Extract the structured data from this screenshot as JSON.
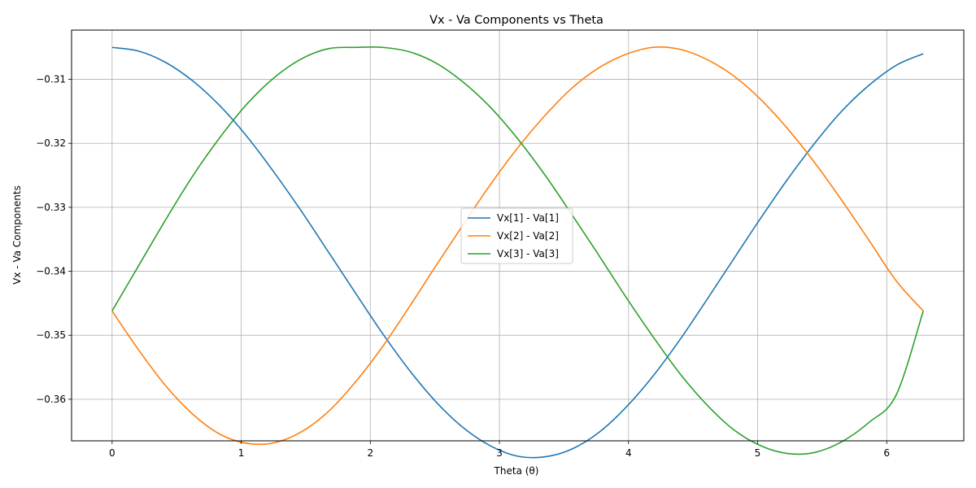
{
  "chart_data": {
    "type": "line",
    "title": "Vx - Va Components vs Theta",
    "xlabel": "Theta (θ)",
    "ylabel": "Vx - Va Components",
    "xlim": [
      -0.314,
      6.597
    ],
    "ylim": [
      -0.3665,
      -0.3023
    ],
    "xticks": [
      0,
      1,
      2,
      3,
      4,
      5,
      6
    ],
    "yticks": [
      -0.31,
      -0.32,
      -0.33,
      -0.34,
      -0.35,
      -0.36
    ],
    "xtick_labels": [
      "0",
      "1",
      "2",
      "3",
      "4",
      "5",
      "6"
    ],
    "ytick_labels": [
      "−0.31",
      "−0.32",
      "−0.33",
      "−0.34",
      "−0.35",
      "−0.36"
    ],
    "grid": true,
    "legend_position": "center",
    "x": [
      0.0,
      0.209,
      0.419,
      0.628,
      0.838,
      1.047,
      1.257,
      1.466,
      1.676,
      1.885,
      2.094,
      2.304,
      2.513,
      2.723,
      2.932,
      3.142,
      3.351,
      3.56,
      3.77,
      3.979,
      4.189,
      4.398,
      4.608,
      4.817,
      5.027,
      5.236,
      5.445,
      5.655,
      5.864,
      6.074,
      6.283
    ],
    "series": [
      {
        "name": "Vx[1] - Va[1]",
        "color": "#1f77b4",
        "values": [
          -0.305,
          -0.3056,
          -0.3074,
          -0.3103,
          -0.3142,
          -0.319,
          -0.3246,
          -0.3306,
          -0.337,
          -0.3434,
          -0.3497,
          -0.3555,
          -0.3605,
          -0.3645,
          -0.3673,
          -0.3689,
          -0.369,
          -0.3678,
          -0.3652,
          -0.3613,
          -0.3564,
          -0.3507,
          -0.3444,
          -0.338,
          -0.3316,
          -0.3255,
          -0.3199,
          -0.3149,
          -0.3109,
          -0.3078,
          -0.306
        ]
      },
      {
        "name": "Vx[2] - Va[2]",
        "color": "#ff7f0e",
        "values": [
          -0.3462,
          -0.3524,
          -0.358,
          -0.3624,
          -0.3655,
          -0.3669,
          -0.3668,
          -0.3651,
          -0.3619,
          -0.3573,
          -0.3518,
          -0.3455,
          -0.339,
          -0.3326,
          -0.3264,
          -0.3207,
          -0.3157,
          -0.3114,
          -0.3082,
          -0.3061,
          -0.305,
          -0.3053,
          -0.3069,
          -0.3095,
          -0.3132,
          -0.3178,
          -0.3231,
          -0.329,
          -0.3352,
          -0.3415,
          -0.3462
        ]
      },
      {
        "name": "Vx[3] - Va[3]",
        "color": "#2ca02c",
        "values": [
          -0.3462,
          -0.339,
          -0.3318,
          -0.325,
          -0.319,
          -0.3138,
          -0.3097,
          -0.3068,
          -0.3052,
          -0.305,
          -0.305,
          -0.3057,
          -0.3075,
          -0.3105,
          -0.3144,
          -0.3193,
          -0.3249,
          -0.3311,
          -0.3375,
          -0.344,
          -0.3502,
          -0.356,
          -0.3609,
          -0.3648,
          -0.3673,
          -0.3685,
          -0.3683,
          -0.3666,
          -0.3636,
          -0.3593,
          -0.3462
        ]
      }
    ]
  }
}
